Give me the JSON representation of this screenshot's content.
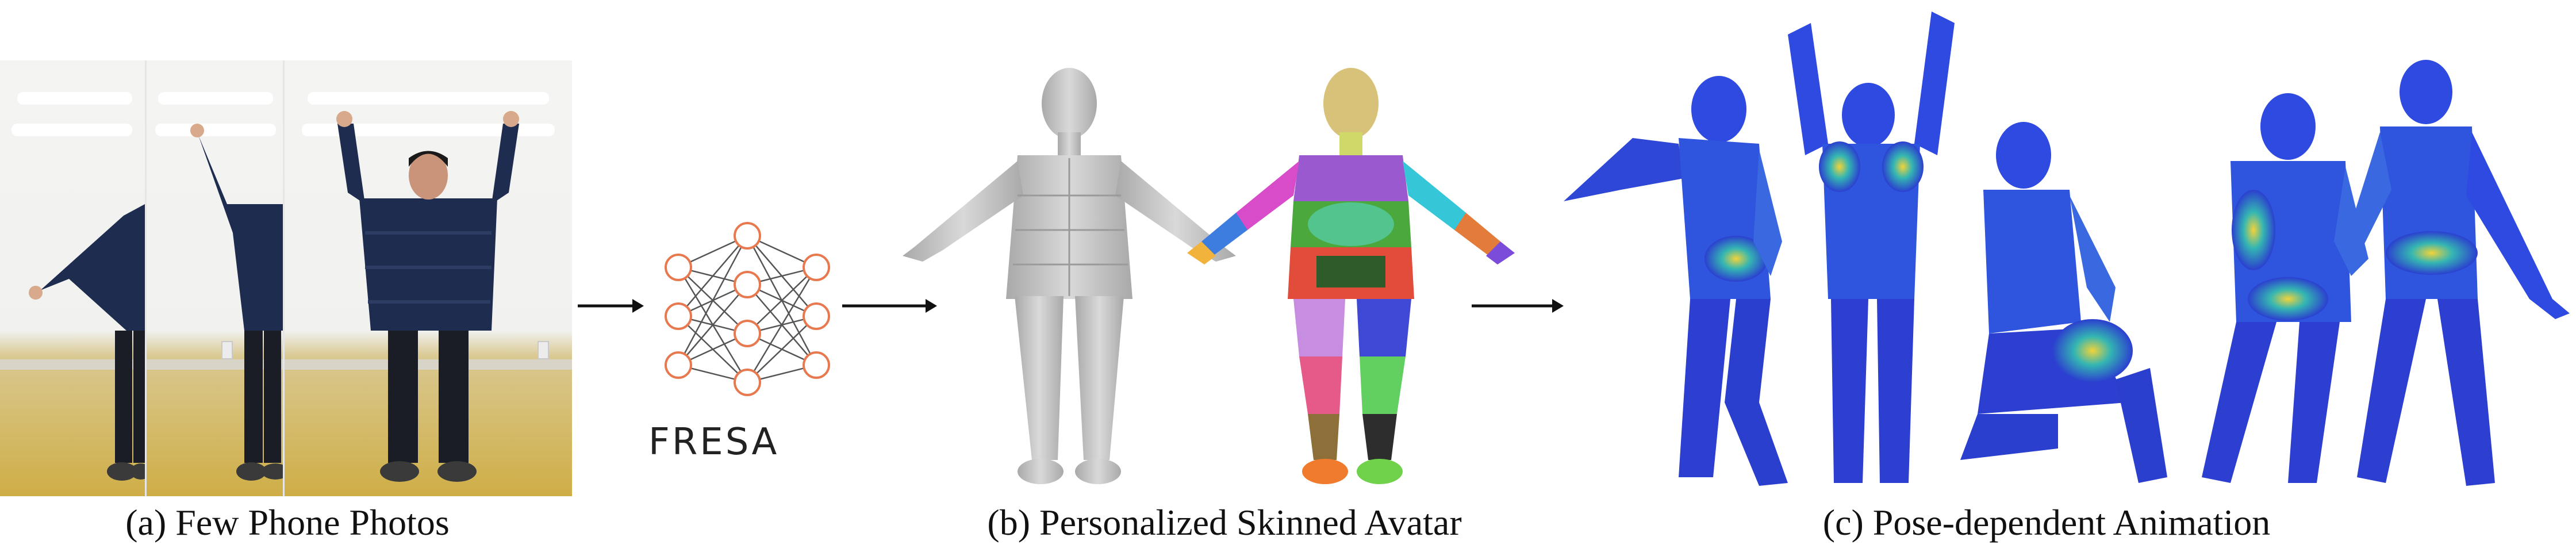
{
  "figure": {
    "panels": [
      {
        "id": "a",
        "caption": "(a) Few Phone Photos"
      },
      {
        "id": "b",
        "caption": "(b) Personalized Skinned Avatar"
      },
      {
        "id": "c",
        "caption": "(c) Pose-dependent Animation"
      }
    ],
    "method_label": "FRESA",
    "colors": {
      "network_node": "#e8794f",
      "network_edge": "#555555",
      "avatar_gray": "#c8c8c8",
      "heatmap_low": "#2b3fcf",
      "heatmap_mid": "#34b6b2",
      "heatmap_high": "#f2d33a",
      "jacket": "#1e2c4f"
    },
    "icons": [
      "right-arrow-icon",
      "neural-network-icon"
    ]
  }
}
